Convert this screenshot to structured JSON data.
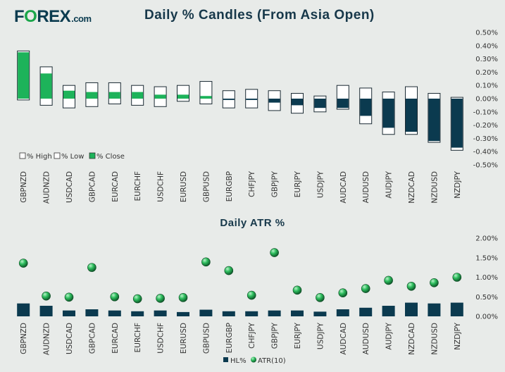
{
  "brand": {
    "logo_pre": "F",
    "logo_o": "O",
    "logo_post": "REX",
    "logo_dom": ".com"
  },
  "chart_data": [
    {
      "type": "bar",
      "title": "Daily % Candles (From Asia Open)",
      "categories": [
        "GBPNZD",
        "AUDNZD",
        "USDCAD",
        "GBPCAD",
        "EURCAD",
        "EURCHF",
        "USDCHF",
        "EURUSD",
        "GBPUSD",
        "EURGBP",
        "CHFJPY",
        "GBPJPY",
        "EURJPY",
        "USDJPY",
        "AUDCAD",
        "AUDUSD",
        "AUDJPY",
        "NZDCAD",
        "NZDUSD",
        "NZDJPY"
      ],
      "series": [
        {
          "name": "% High",
          "values": [
            0.36,
            0.24,
            0.1,
            0.12,
            0.12,
            0.1,
            0.09,
            0.1,
            0.13,
            0.06,
            0.07,
            0.06,
            0.04,
            0.02,
            0.1,
            0.08,
            0.05,
            0.09,
            0.04,
            0.01
          ]
        },
        {
          "name": "% Low",
          "values": [
            -0.01,
            -0.05,
            -0.07,
            -0.06,
            -0.04,
            -0.05,
            -0.06,
            -0.02,
            -0.04,
            -0.07,
            -0.07,
            -0.09,
            -0.11,
            -0.1,
            -0.08,
            -0.19,
            -0.27,
            -0.27,
            -0.33,
            -0.39
          ]
        },
        {
          "name": "% Close",
          "values": [
            0.35,
            0.19,
            0.06,
            0.05,
            0.05,
            0.05,
            0.03,
            0.03,
            0.02,
            -0.01,
            -0.01,
            -0.03,
            -0.05,
            -0.07,
            -0.07,
            -0.13,
            -0.22,
            -0.25,
            -0.32,
            -0.37
          ]
        }
      ],
      "ylim": [
        -0.5,
        0.5
      ],
      "yticks": [
        "0.50%",
        "0.40%",
        "0.30%",
        "0.20%",
        "0.10%",
        "0.00%",
        "-0.10%",
        "-0.20%",
        "-0.30%",
        "-0.40%",
        "-0.50%"
      ],
      "legend": [
        "% High",
        "% Low",
        "% Close"
      ],
      "legend_position": "bottom-left",
      "colors": {
        "up": "#1db35a",
        "down": "#0b3a4f",
        "range_fill": "#ffffff",
        "outline": "#1b2a33"
      }
    },
    {
      "type": "bar",
      "title": "Daily ATR %",
      "categories": [
        "GBPNZD",
        "AUDNZD",
        "USDCAD",
        "GBPCAD",
        "EURCAD",
        "EURCHF",
        "USDCHF",
        "EURUSD",
        "GBPUSD",
        "EURGBP",
        "CHFJPY",
        "GBPJPY",
        "EURJPY",
        "USDJPY",
        "AUDCAD",
        "AUDUSD",
        "AUDJPY",
        "NZDCAD",
        "NZDUSD",
        "NZDJPY"
      ],
      "series": [
        {
          "name": "HL%",
          "values": [
            0.33,
            0.27,
            0.15,
            0.18,
            0.15,
            0.13,
            0.15,
            0.11,
            0.17,
            0.13,
            0.13,
            0.15,
            0.15,
            0.12,
            0.18,
            0.22,
            0.27,
            0.35,
            0.33,
            0.35
          ]
        },
        {
          "name": "ATR(10)",
          "values": [
            1.36,
            0.52,
            0.49,
            1.25,
            0.5,
            0.45,
            0.46,
            0.48,
            1.39,
            1.17,
            0.54,
            1.63,
            0.67,
            0.48,
            0.6,
            0.71,
            0.92,
            0.77,
            0.86,
            1.0
          ]
        }
      ],
      "ylim": [
        0,
        2.0
      ],
      "yticks": [
        "2.00%",
        "1.50%",
        "1.00%",
        "0.50%",
        "0.00%"
      ],
      "legend": [
        "HL%",
        "ATR(10)"
      ],
      "legend_position": "bottom",
      "colors": {
        "bar": "#0b3a4f",
        "marker": "#1aa64a"
      }
    }
  ]
}
